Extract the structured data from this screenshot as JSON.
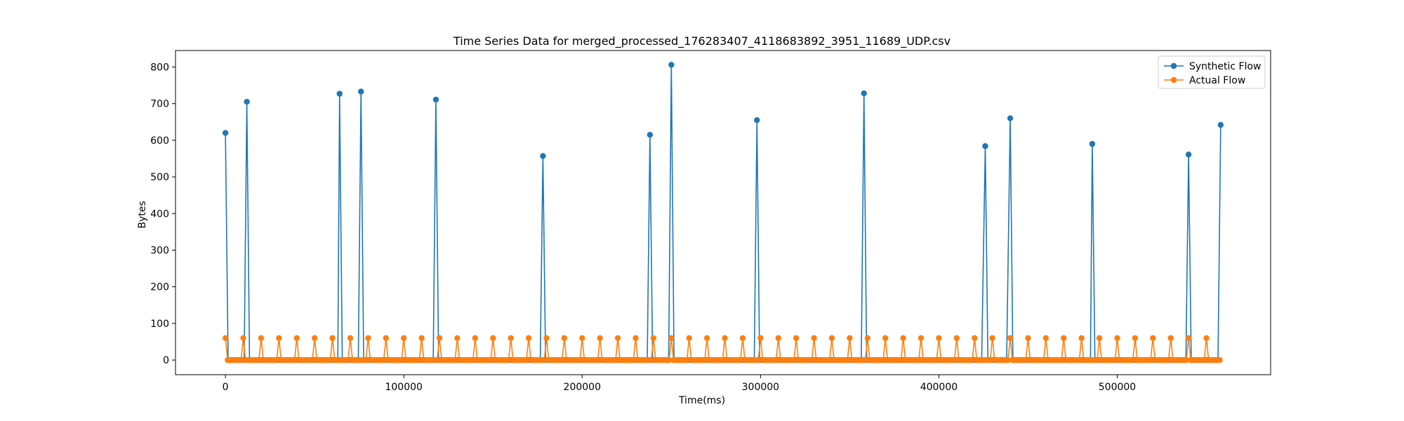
{
  "chart_data": {
    "type": "line",
    "title": "Time Series Data for merged_processed_176283407_4118683892_3951_11689_UDP.csv",
    "xlabel": "Time(ms)",
    "ylabel": "Bytes",
    "xlim": [
      -28000,
      586000
    ],
    "ylim": [
      -40,
      845
    ],
    "xticks": [
      0,
      100000,
      200000,
      300000,
      400000,
      500000
    ],
    "yticks": [
      0,
      100,
      200,
      300,
      400,
      500,
      600,
      700,
      800
    ],
    "grid": false,
    "legend_position": "top-right",
    "series": [
      {
        "name": "Synthetic Flow",
        "color": "#1f77b4",
        "peaks": [
          [
            0,
            620
          ],
          [
            12000,
            705
          ],
          [
            64000,
            727
          ],
          [
            76000,
            733
          ],
          [
            118000,
            711
          ],
          [
            178000,
            557
          ],
          [
            238000,
            615
          ],
          [
            250000,
            806
          ],
          [
            298000,
            655
          ],
          [
            358000,
            728
          ],
          [
            426000,
            584
          ],
          [
            440000,
            660
          ],
          [
            486000,
            590
          ],
          [
            540000,
            561
          ],
          [
            558000,
            642
          ]
        ],
        "baseline": 0,
        "baseline_step": 1500
      },
      {
        "name": "Actual Flow",
        "color": "#ff7f0e",
        "peak_value": 60,
        "peak_start": 0,
        "peak_interval": 10000,
        "peak_end": 550000,
        "baseline": 0,
        "baseline_step": 1250,
        "x_end": 558000
      }
    ]
  }
}
